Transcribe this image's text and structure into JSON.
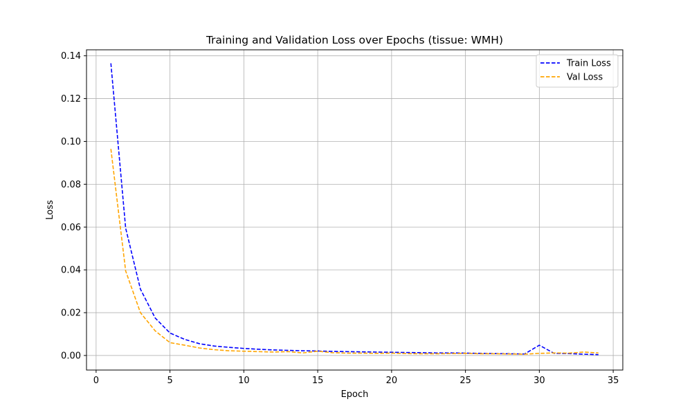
{
  "chart_data": {
    "type": "line",
    "title": "Training and Validation Loss over Epochs (tissue: WMH)",
    "xlabel": "Epoch",
    "ylabel": "Loss",
    "xlim": [
      -0.65,
      35.65
    ],
    "ylim": [
      -0.0068,
      0.1428
    ],
    "xticks": [
      0,
      5,
      10,
      15,
      20,
      25,
      30,
      35
    ],
    "yticks": [
      0.0,
      0.02,
      0.04,
      0.06,
      0.08,
      0.1,
      0.12,
      0.14
    ],
    "ytick_labels": [
      "0.00",
      "0.02",
      "0.04",
      "0.06",
      "0.08",
      "0.10",
      "0.12",
      "0.14"
    ],
    "grid": true,
    "legend_position": "top-right",
    "x": [
      1,
      2,
      3,
      4,
      5,
      6,
      7,
      8,
      9,
      10,
      11,
      12,
      13,
      14,
      15,
      16,
      17,
      18,
      19,
      20,
      21,
      22,
      23,
      24,
      25,
      26,
      27,
      28,
      29,
      30,
      31,
      32,
      33,
      34
    ],
    "series": [
      {
        "name": "Train Loss",
        "color": "#0000ff",
        "style": "dashed",
        "values": [
          0.1365,
          0.0595,
          0.031,
          0.0175,
          0.0105,
          0.0075,
          0.0055,
          0.0044,
          0.0038,
          0.0033,
          0.0029,
          0.0026,
          0.0024,
          0.0022,
          0.0021,
          0.0019,
          0.0018,
          0.0017,
          0.0016,
          0.0015,
          0.0014,
          0.0013,
          0.0012,
          0.0012,
          0.0011,
          0.001,
          0.0009,
          0.0008,
          0.0007,
          0.0048,
          0.001,
          0.0009,
          0.0006,
          0.0004
        ]
      },
      {
        "name": "Val Loss",
        "color": "#ffa500",
        "style": "dashed",
        "values": [
          0.0965,
          0.0395,
          0.02,
          0.0115,
          0.006,
          0.0048,
          0.0035,
          0.0027,
          0.0022,
          0.002,
          0.0018,
          0.0016,
          0.0018,
          0.0012,
          0.002,
          0.0013,
          0.0011,
          0.0011,
          0.001,
          0.0011,
          0.0009,
          0.0008,
          0.0008,
          0.0009,
          0.001,
          0.0008,
          0.0008,
          0.0007,
          0.0006,
          0.001,
          0.0012,
          0.0011,
          0.0016,
          0.0012
        ]
      }
    ]
  }
}
